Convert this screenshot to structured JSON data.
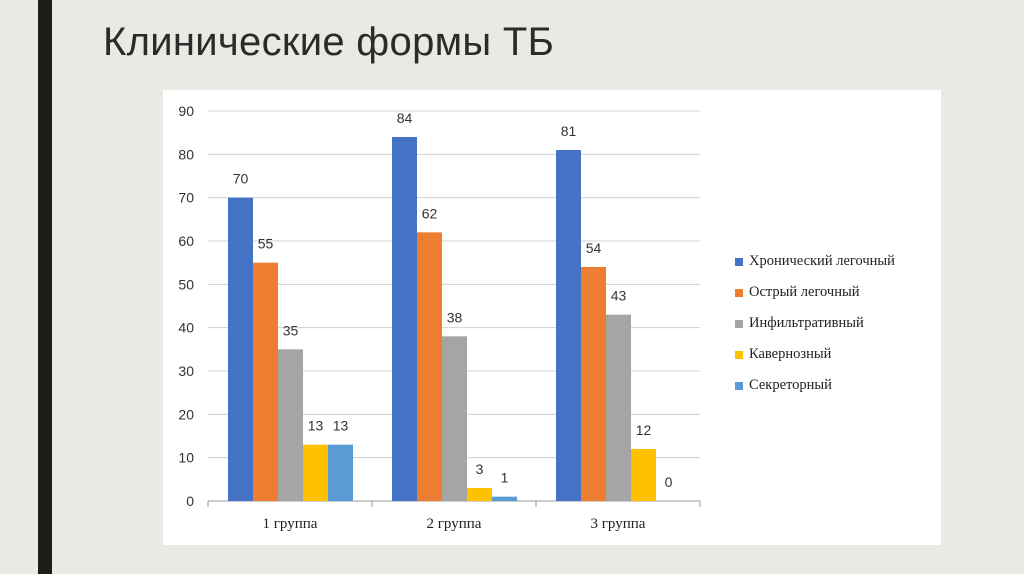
{
  "slide": {
    "title": "Клинические формы ТБ"
  },
  "chart_data": {
    "type": "bar",
    "categories": [
      "1 группа",
      "2 группа",
      "3 группа"
    ],
    "ylim": [
      0,
      90
    ],
    "yticks": [
      0,
      10,
      20,
      30,
      40,
      50,
      60,
      70,
      80,
      90
    ],
    "grid": true,
    "legend_position": "right",
    "series": [
      {
        "name": "Хронический легочный",
        "color": "#4472c4",
        "values": [
          70,
          84,
          81
        ]
      },
      {
        "name": "Острый легочный",
        "color": "#ed7d31",
        "values": [
          55,
          62,
          54
        ]
      },
      {
        "name": "Инфильтративный",
        "color": "#a5a5a5",
        "values": [
          35,
          38,
          43
        ]
      },
      {
        "name": "Кавернозный",
        "color": "#ffc000",
        "values": [
          13,
          3,
          12
        ]
      },
      {
        "name": "Секреторный",
        "color": "#5b9bd5",
        "values": [
          13,
          1,
          0
        ]
      }
    ]
  }
}
